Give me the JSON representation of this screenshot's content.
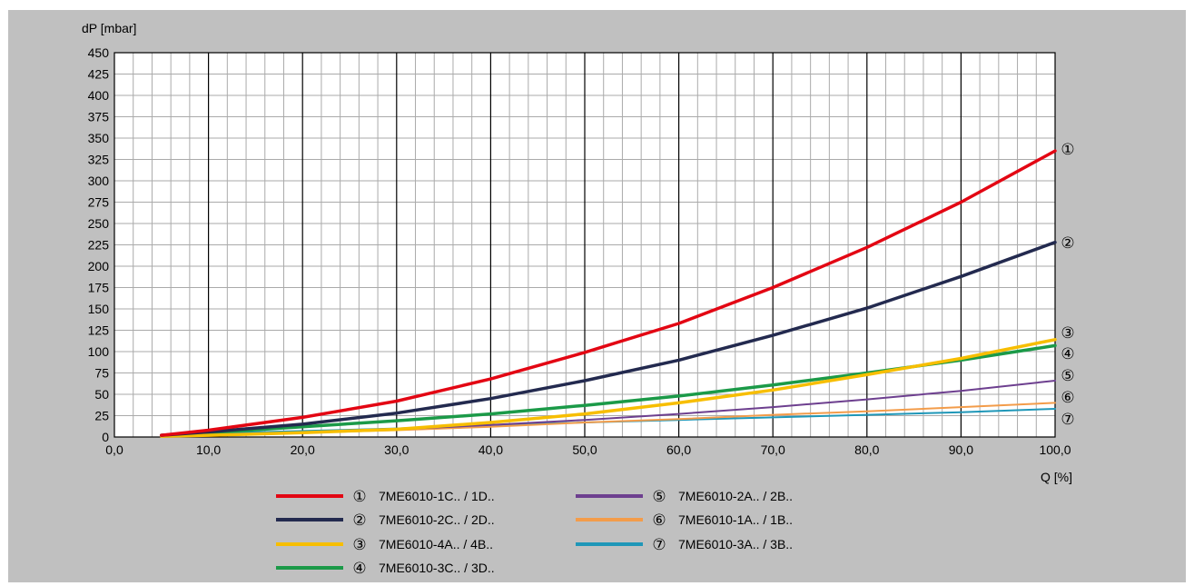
{
  "chart_data": {
    "type": "line",
    "xlabel": "Q [%]",
    "ylabel": "dP [mbar]",
    "xlim": [
      0,
      100
    ],
    "ylim": [
      0,
      450
    ],
    "x_ticks": [
      "0,0",
      "10,0",
      "20,0",
      "30,0",
      "40,0",
      "50,0",
      "60,0",
      "70,0",
      "80,0",
      "90,0",
      "100,0"
    ],
    "y_ticks": [
      "0",
      "25",
      "50",
      "75",
      "100",
      "125",
      "150",
      "175",
      "200",
      "225",
      "250",
      "275",
      "300",
      "325",
      "350",
      "375",
      "400",
      "425",
      "450"
    ],
    "grid": true,
    "legend_position": "bottom",
    "series": [
      {
        "marker": "①",
        "name": "7ME6010-1C.. / 1D..",
        "color": "#e30613",
        "x": [
          5,
          10,
          20,
          30,
          40,
          50,
          60,
          70,
          80,
          90,
          100
        ],
        "values": [
          2,
          8,
          23,
          42,
          68,
          99,
          133,
          175,
          222,
          275,
          335
        ]
      },
      {
        "marker": "②",
        "name": "7ME6010-2C.. / 2D..",
        "color": "#232a4f",
        "x": [
          5,
          10,
          20,
          30,
          40,
          50,
          60,
          70,
          80,
          90,
          100
        ],
        "values": [
          2,
          6,
          15,
          28,
          45,
          66,
          90,
          119,
          151,
          188,
          228
        ]
      },
      {
        "marker": "③",
        "name": "7ME6010-4A.. / 4B..",
        "color": "#f7be00",
        "x": [
          5,
          10,
          20,
          30,
          40,
          50,
          60,
          70,
          80,
          90,
          100
        ],
        "values": [
          1,
          2,
          5,
          9,
          17,
          27,
          40,
          55,
          73,
          92,
          114
        ]
      },
      {
        "marker": "④",
        "name": "7ME6010-3C.. / 3D..",
        "color": "#1b9a48",
        "x": [
          5,
          10,
          20,
          30,
          40,
          50,
          60,
          70,
          80,
          90,
          100
        ],
        "values": [
          2,
          5,
          12,
          19,
          27,
          37,
          48,
          61,
          75,
          90,
          107
        ]
      },
      {
        "marker": "⑤",
        "name": "7ME6010-2A.. / 2B..",
        "color": "#6d3f8f",
        "x": [
          5,
          10,
          20,
          30,
          40,
          50,
          60,
          70,
          80,
          90,
          100
        ],
        "values": [
          1,
          2,
          5,
          9,
          14,
          20,
          27,
          35,
          44,
          54,
          66
        ]
      },
      {
        "marker": "⑥",
        "name": "7ME6010-1A.. / 1B..",
        "color": "#f39c4a",
        "x": [
          5,
          10,
          20,
          30,
          40,
          50,
          60,
          70,
          80,
          90,
          100
        ],
        "values": [
          1,
          2,
          5,
          8,
          12,
          17,
          21,
          26,
          30,
          35,
          40
        ]
      },
      {
        "marker": "⑦",
        "name": "7ME6010-3A.. / 3B..",
        "color": "#1f97b8",
        "x": [
          5,
          10,
          20,
          30,
          40,
          50,
          60,
          70,
          80,
          90,
          100
        ],
        "values": [
          2,
          4,
          7,
          10,
          14,
          17,
          20,
          23,
          26,
          29,
          33
        ]
      }
    ]
  }
}
